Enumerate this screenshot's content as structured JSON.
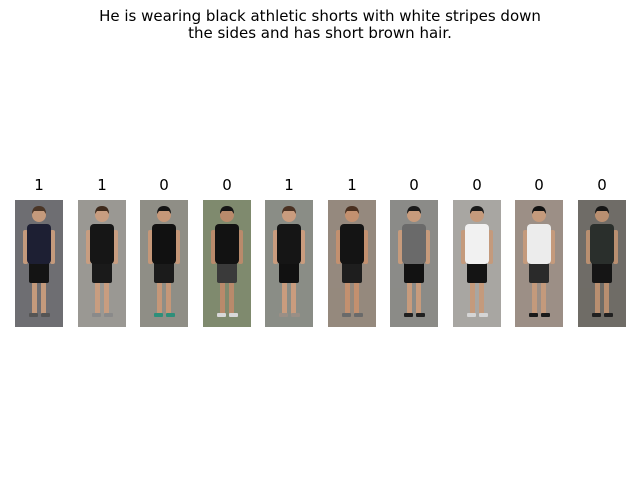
{
  "caption": {
    "line1": "He is wearing black athletic shorts with white stripes down",
    "line2": "the sides and has short brown hair."
  },
  "results": [
    {
      "label": "1",
      "image": "person-crop-1",
      "colors": {
        "bg": "#6e6e72",
        "hair": "#4a3526",
        "top": "#1d1f33",
        "bottom": "#141414",
        "skin": "#c49a7c",
        "shoe": "#555555"
      }
    },
    {
      "label": "1",
      "image": "person-crop-2",
      "colors": {
        "bg": "#9a9893",
        "hair": "#3f2a1c",
        "top": "#161616",
        "bottom": "#1a1a1a",
        "skin": "#c89d80",
        "shoe": "#8a8a8a"
      }
    },
    {
      "label": "0",
      "image": "person-crop-3",
      "colors": {
        "bg": "#8f8e86",
        "hair": "#151515",
        "top": "#111111",
        "bottom": "#1b1b1b",
        "skin": "#c59778",
        "shoe": "#2e8f7a"
      }
    },
    {
      "label": "0",
      "image": "person-crop-4",
      "colors": {
        "bg": "#7f8a6e",
        "hair": "#151515",
        "top": "#121212",
        "bottom": "#3a3a3a",
        "skin": "#b98a6b",
        "shoe": "#d8d8d8"
      }
    },
    {
      "label": "1",
      "image": "person-crop-5",
      "colors": {
        "bg": "#8a8d86",
        "hair": "#4a3122",
        "top": "#151515",
        "bottom": "#111111",
        "skin": "#c99c7e",
        "shoe": "#9a8f86"
      }
    },
    {
      "label": "1",
      "image": "person-crop-6",
      "colors": {
        "bg": "#95897e",
        "hair": "#4a2f1f",
        "top": "#141414",
        "bottom": "#1e1e1e",
        "skin": "#c3906f",
        "shoe": "#6a6a6a"
      }
    },
    {
      "label": "0",
      "image": "person-crop-7",
      "colors": {
        "bg": "#8b8b88",
        "hair": "#1a1a1a",
        "top": "#6a6a6a",
        "bottom": "#121212",
        "skin": "#c79b7c",
        "shoe": "#202020"
      }
    },
    {
      "label": "0",
      "image": "person-crop-8",
      "colors": {
        "bg": "#a8a6a2",
        "hair": "#1a1a1a",
        "top": "#f1f1f1",
        "bottom": "#141414",
        "skin": "#c49a7c",
        "shoe": "#d5d5d5"
      }
    },
    {
      "label": "0",
      "image": "person-crop-9",
      "colors": {
        "bg": "#9c8f86",
        "hair": "#121212",
        "top": "#ececec",
        "bottom": "#2a2a2a",
        "skin": "#c49a7c",
        "shoe": "#1a1a1a"
      }
    },
    {
      "label": "0",
      "image": "person-crop-10",
      "colors": {
        "bg": "#6f6c67",
        "hair": "#161616",
        "top": "#2a2f2c",
        "bottom": "#151515",
        "skin": "#b98f70",
        "shoe": "#202020"
      }
    }
  ]
}
